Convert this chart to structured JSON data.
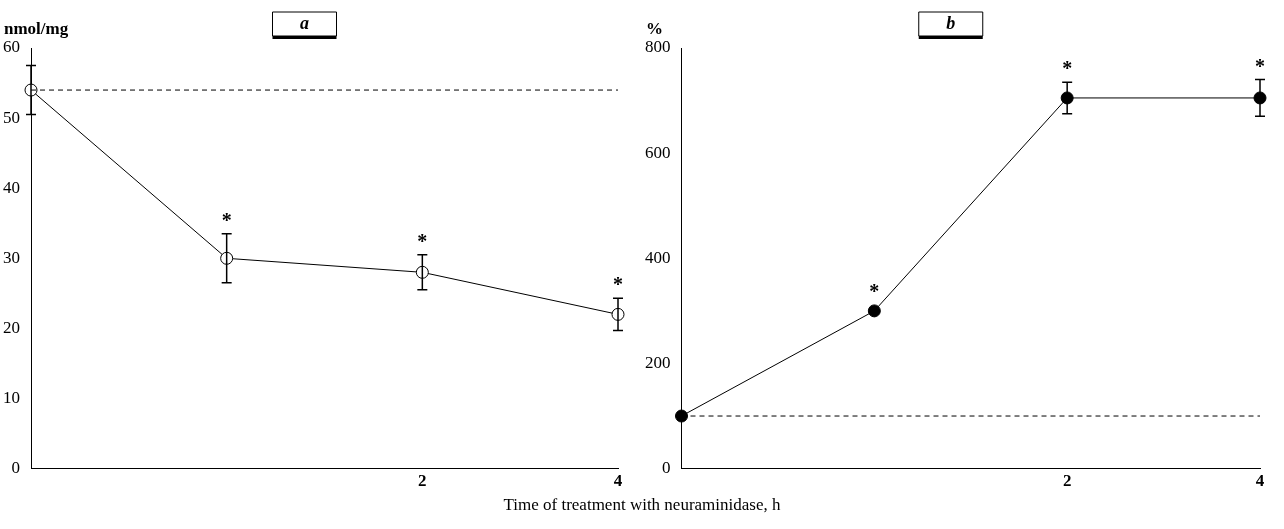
{
  "chart_data": [
    {
      "type": "line",
      "title": "a",
      "ylabel": "nmol/mg",
      "xlabel": "Time of treatment with neuraminidase, h",
      "categories": [
        null,
        null,
        "2",
        "4"
      ],
      "series": [
        {
          "color": "#000000",
          "values": [
            54,
            30,
            28,
            22
          ],
          "errors": [
            3.5,
            3.5,
            2.5,
            2.3
          ],
          "value_labels": [
            null,
            "*",
            "*",
            "*"
          ]
        }
      ],
      "ylim": [
        0,
        60
      ],
      "yticks": [
        0,
        10,
        20,
        30,
        40,
        50,
        60
      ],
      "ref_lines": [
        {
          "axis": "y",
          "value": 54,
          "line_style": "dashed"
        }
      ],
      "marker": "circle",
      "grid": false,
      "legend": false
    },
    {
      "type": "line",
      "title": "b",
      "ylabel": "%",
      "categories": [
        null,
        null,
        "2",
        "4"
      ],
      "series": [
        {
          "color": "#000000",
          "values": [
            100,
            300,
            705,
            705
          ],
          "errors": [
            null,
            null,
            30,
            35
          ],
          "value_labels": [
            null,
            "*",
            "*",
            "*"
          ]
        }
      ],
      "ylim": [
        0,
        800
      ],
      "yticks": [
        0,
        200,
        400,
        600,
        800
      ],
      "ref_lines": [
        {
          "axis": "y",
          "value": 100,
          "line_style": "dashed"
        }
      ],
      "marker": "circle",
      "grid": false,
      "legend": false
    }
  ]
}
